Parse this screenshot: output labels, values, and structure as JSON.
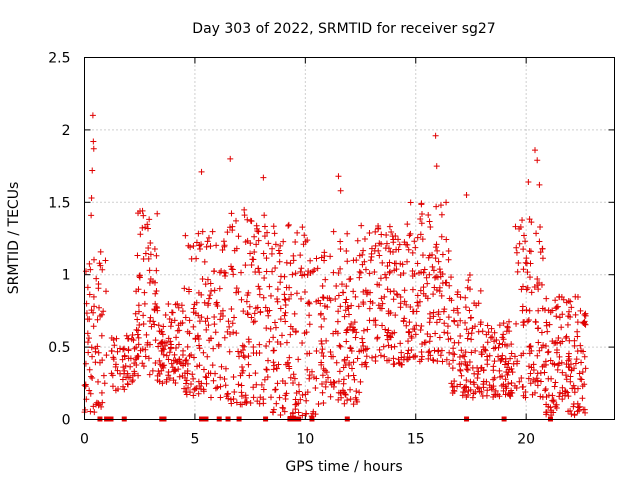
{
  "chart_data": {
    "type": "scatter",
    "title": "Day 303 of 2022, SRMTID for receiver sg27",
    "xlabel": "GPS time / hours",
    "ylabel": "SRMTID / TECUs",
    "xlim": [
      0,
      24
    ],
    "ylim": [
      0,
      2.5
    ],
    "x_ticks": [
      0,
      5,
      10,
      15,
      20
    ],
    "x_tick_labels": [
      "0",
      "5",
      "10",
      "15",
      "20"
    ],
    "y_ticks": [
      0,
      0.5,
      1,
      1.5,
      2,
      2.5
    ],
    "y_tick_labels": [
      "0",
      "0.5",
      "1",
      "1.5",
      "2",
      "2.5"
    ],
    "grid": true,
    "marker": "plus",
    "color": "#e00000",
    "zero_markers_x": [
      0.7,
      1.0,
      1.2,
      1.8,
      3.5,
      3.6,
      5.3,
      5.5,
      6.1,
      6.5,
      7.0,
      8.2,
      9.3,
      9.5,
      9.7,
      10.3,
      11.9,
      17.3,
      19.0,
      21.1
    ],
    "spikes": [
      {
        "x": 0.38,
        "y": 2.1
      },
      {
        "x": 0.4,
        "y": 1.92
      },
      {
        "x": 0.42,
        "y": 1.87
      },
      {
        "x": 0.35,
        "y": 1.72
      },
      {
        "x": 0.32,
        "y": 1.53
      },
      {
        "x": 0.3,
        "y": 1.41
      },
      {
        "x": 6.6,
        "y": 1.8
      },
      {
        "x": 5.3,
        "y": 1.71
      },
      {
        "x": 11.5,
        "y": 1.68
      },
      {
        "x": 15.9,
        "y": 1.96
      },
      {
        "x": 15.95,
        "y": 1.75
      },
      {
        "x": 20.4,
        "y": 1.86
      },
      {
        "x": 20.5,
        "y": 1.79
      },
      {
        "x": 20.1,
        "y": 1.64
      },
      {
        "x": 20.6,
        "y": 1.62
      },
      {
        "x": 17.3,
        "y": 1.55
      },
      {
        "x": 8.1,
        "y": 1.67
      },
      {
        "x": 11.6,
        "y": 1.58
      }
    ],
    "segments": [
      {
        "start": 0.0,
        "end": 1.0,
        "count": 70,
        "low": 0.05,
        "high": 1.2
      },
      {
        "start": 1.2,
        "end": 2.3,
        "count": 55,
        "low": 0.2,
        "high": 0.6
      },
      {
        "start": 2.3,
        "end": 3.3,
        "count": 80,
        "low": 0.3,
        "high": 1.45
      },
      {
        "start": 3.3,
        "end": 4.5,
        "count": 90,
        "low": 0.25,
        "high": 0.8
      },
      {
        "start": 4.5,
        "end": 6.5,
        "count": 150,
        "low": 0.15,
        "high": 1.3
      },
      {
        "start": 6.5,
        "end": 8.5,
        "count": 150,
        "low": 0.1,
        "high": 1.45
      },
      {
        "start": 8.5,
        "end": 10.5,
        "count": 150,
        "low": 0.02,
        "high": 1.35
      },
      {
        "start": 10.5,
        "end": 12.5,
        "count": 150,
        "low": 0.1,
        "high": 1.3
      },
      {
        "start": 12.5,
        "end": 14.5,
        "count": 150,
        "low": 0.35,
        "high": 1.35
      },
      {
        "start": 14.5,
        "end": 16.5,
        "count": 150,
        "low": 0.4,
        "high": 1.5
      },
      {
        "start": 16.5,
        "end": 18.0,
        "count": 110,
        "low": 0.15,
        "high": 1.0
      },
      {
        "start": 18.0,
        "end": 19.5,
        "count": 100,
        "low": 0.15,
        "high": 0.7
      },
      {
        "start": 19.5,
        "end": 20.8,
        "count": 100,
        "low": 0.15,
        "high": 1.4
      },
      {
        "start": 20.8,
        "end": 22.7,
        "count": 160,
        "low": 0.03,
        "high": 0.85
      }
    ]
  }
}
